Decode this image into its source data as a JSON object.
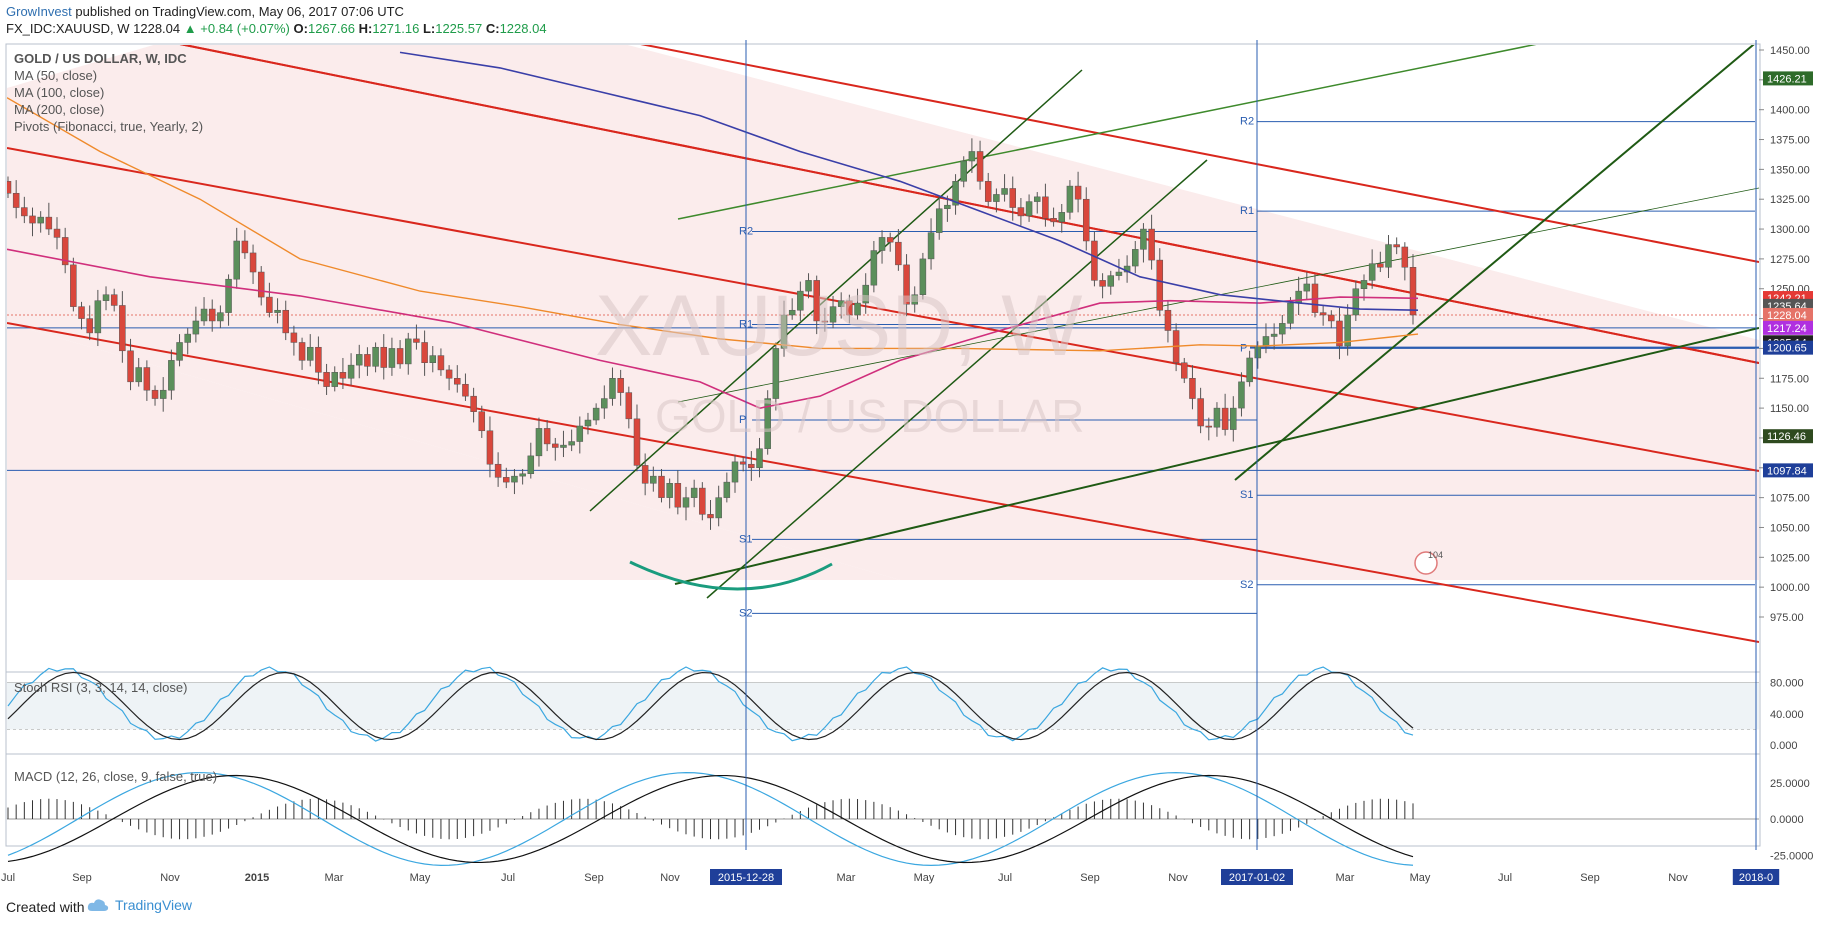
{
  "header": {
    "author": "GrowInvest",
    "published": "published on TradingView.com, May 06, 2017 07:06 UTC",
    "symbol_line": "FX_IDC:XAUUSD, W",
    "last": "1228.04",
    "change": "+0.84 (+0.07%)",
    "open_label": "O:",
    "open": "1267.66",
    "high_label": "H:",
    "high": "1271.16",
    "low_label": "L:",
    "low": "1225.57",
    "close_label": "C:",
    "close": "1228.04"
  },
  "legend": {
    "title": "GOLD / US DOLLAR, W, IDC",
    "ma50": "MA (50, close)",
    "ma100": "MA (100, close)",
    "ma200": "MA (200, close)",
    "pivots": "Pivots (Fibonacci, true, Yearly, 2)"
  },
  "watermark": {
    "symbol": "XAUUSD, W",
    "name": "GOLD / US DOLLAR"
  },
  "stoch": {
    "label": "Stoch RSI (3, 3, 14, 14, close)",
    "ticks": [
      "80.000",
      "40.000",
      "0.000"
    ]
  },
  "macd": {
    "label": "MACD (12, 26, close, 9, false, true)",
    "ticks": [
      "25.0000",
      "0.0000",
      "-25.0000"
    ]
  },
  "price_axis": {
    "ticks": [
      "1450.00",
      "1425.00",
      "1400.00",
      "1375.00",
      "1350.00",
      "1325.00",
      "1300.00",
      "1275.00",
      "1250.00",
      "1225.00",
      "1200.00",
      "1175.00",
      "1150.00",
      "1125.00",
      "1100.00",
      "1075.00",
      "1050.00",
      "1025.00",
      "1000.00",
      "975.00"
    ],
    "tags": [
      {
        "value": "1426.21",
        "color": "#2e6b2a"
      },
      {
        "value": "1242.21",
        "color": "#e53935"
      },
      {
        "value": "1235.64",
        "color": "#555555"
      },
      {
        "value": "1228.04",
        "color": "#e57368"
      },
      {
        "value": "1217.24",
        "color": "#b030e0"
      },
      {
        "value": "1205.00",
        "color": "#2e7d32"
      },
      {
        "value": "1205.14",
        "color": "#222222"
      },
      {
        "value": "1200.65",
        "color": "#1f3f99"
      },
      {
        "value": "1126.46",
        "color": "#2e4a1f"
      },
      {
        "value": "1097.84",
        "color": "#1f3f99"
      }
    ]
  },
  "time_axis": {
    "labels": [
      "Jul",
      "Sep",
      "Nov",
      "2015",
      "Mar",
      "May",
      "Jul",
      "Sep",
      "Nov",
      "2015-12-28",
      "Mar",
      "May",
      "Jul",
      "Sep",
      "Nov",
      "2017-01-02",
      "Mar",
      "May",
      "Jul",
      "Sep",
      "Nov",
      "2018-0"
    ],
    "highlighted": [
      "2015-12-28",
      "2017-01-02",
      "2018-0"
    ]
  },
  "pivots": {
    "y2016": [
      "R2",
      "R1",
      "P",
      "S1",
      "S2"
    ],
    "y2017": [
      "R2",
      "R1",
      "P",
      "S1",
      "S2"
    ]
  },
  "event_badge": "104",
  "footer": {
    "created": "Created with",
    "brand": "TradingView"
  },
  "colors": {
    "up": "#5b8f5b",
    "down": "#d9473c",
    "ma50": "#d02f7c",
    "ma100": "#3a3fa8",
    "ma200": "#ef8a2b",
    "channel": "#d9271d",
    "trend": "#2f7d1f",
    "pivot": "#2a5db0"
  },
  "chart_data": {
    "type": "candlestick",
    "title": "GOLD / US DOLLAR, W, IDC",
    "ylim": [
      970,
      1455
    ],
    "weeks": 180,
    "ohlc": [],
    "note_series": [
      "MA (50, close)",
      "MA (100, close)",
      "MA (200, close)"
    ]
  }
}
